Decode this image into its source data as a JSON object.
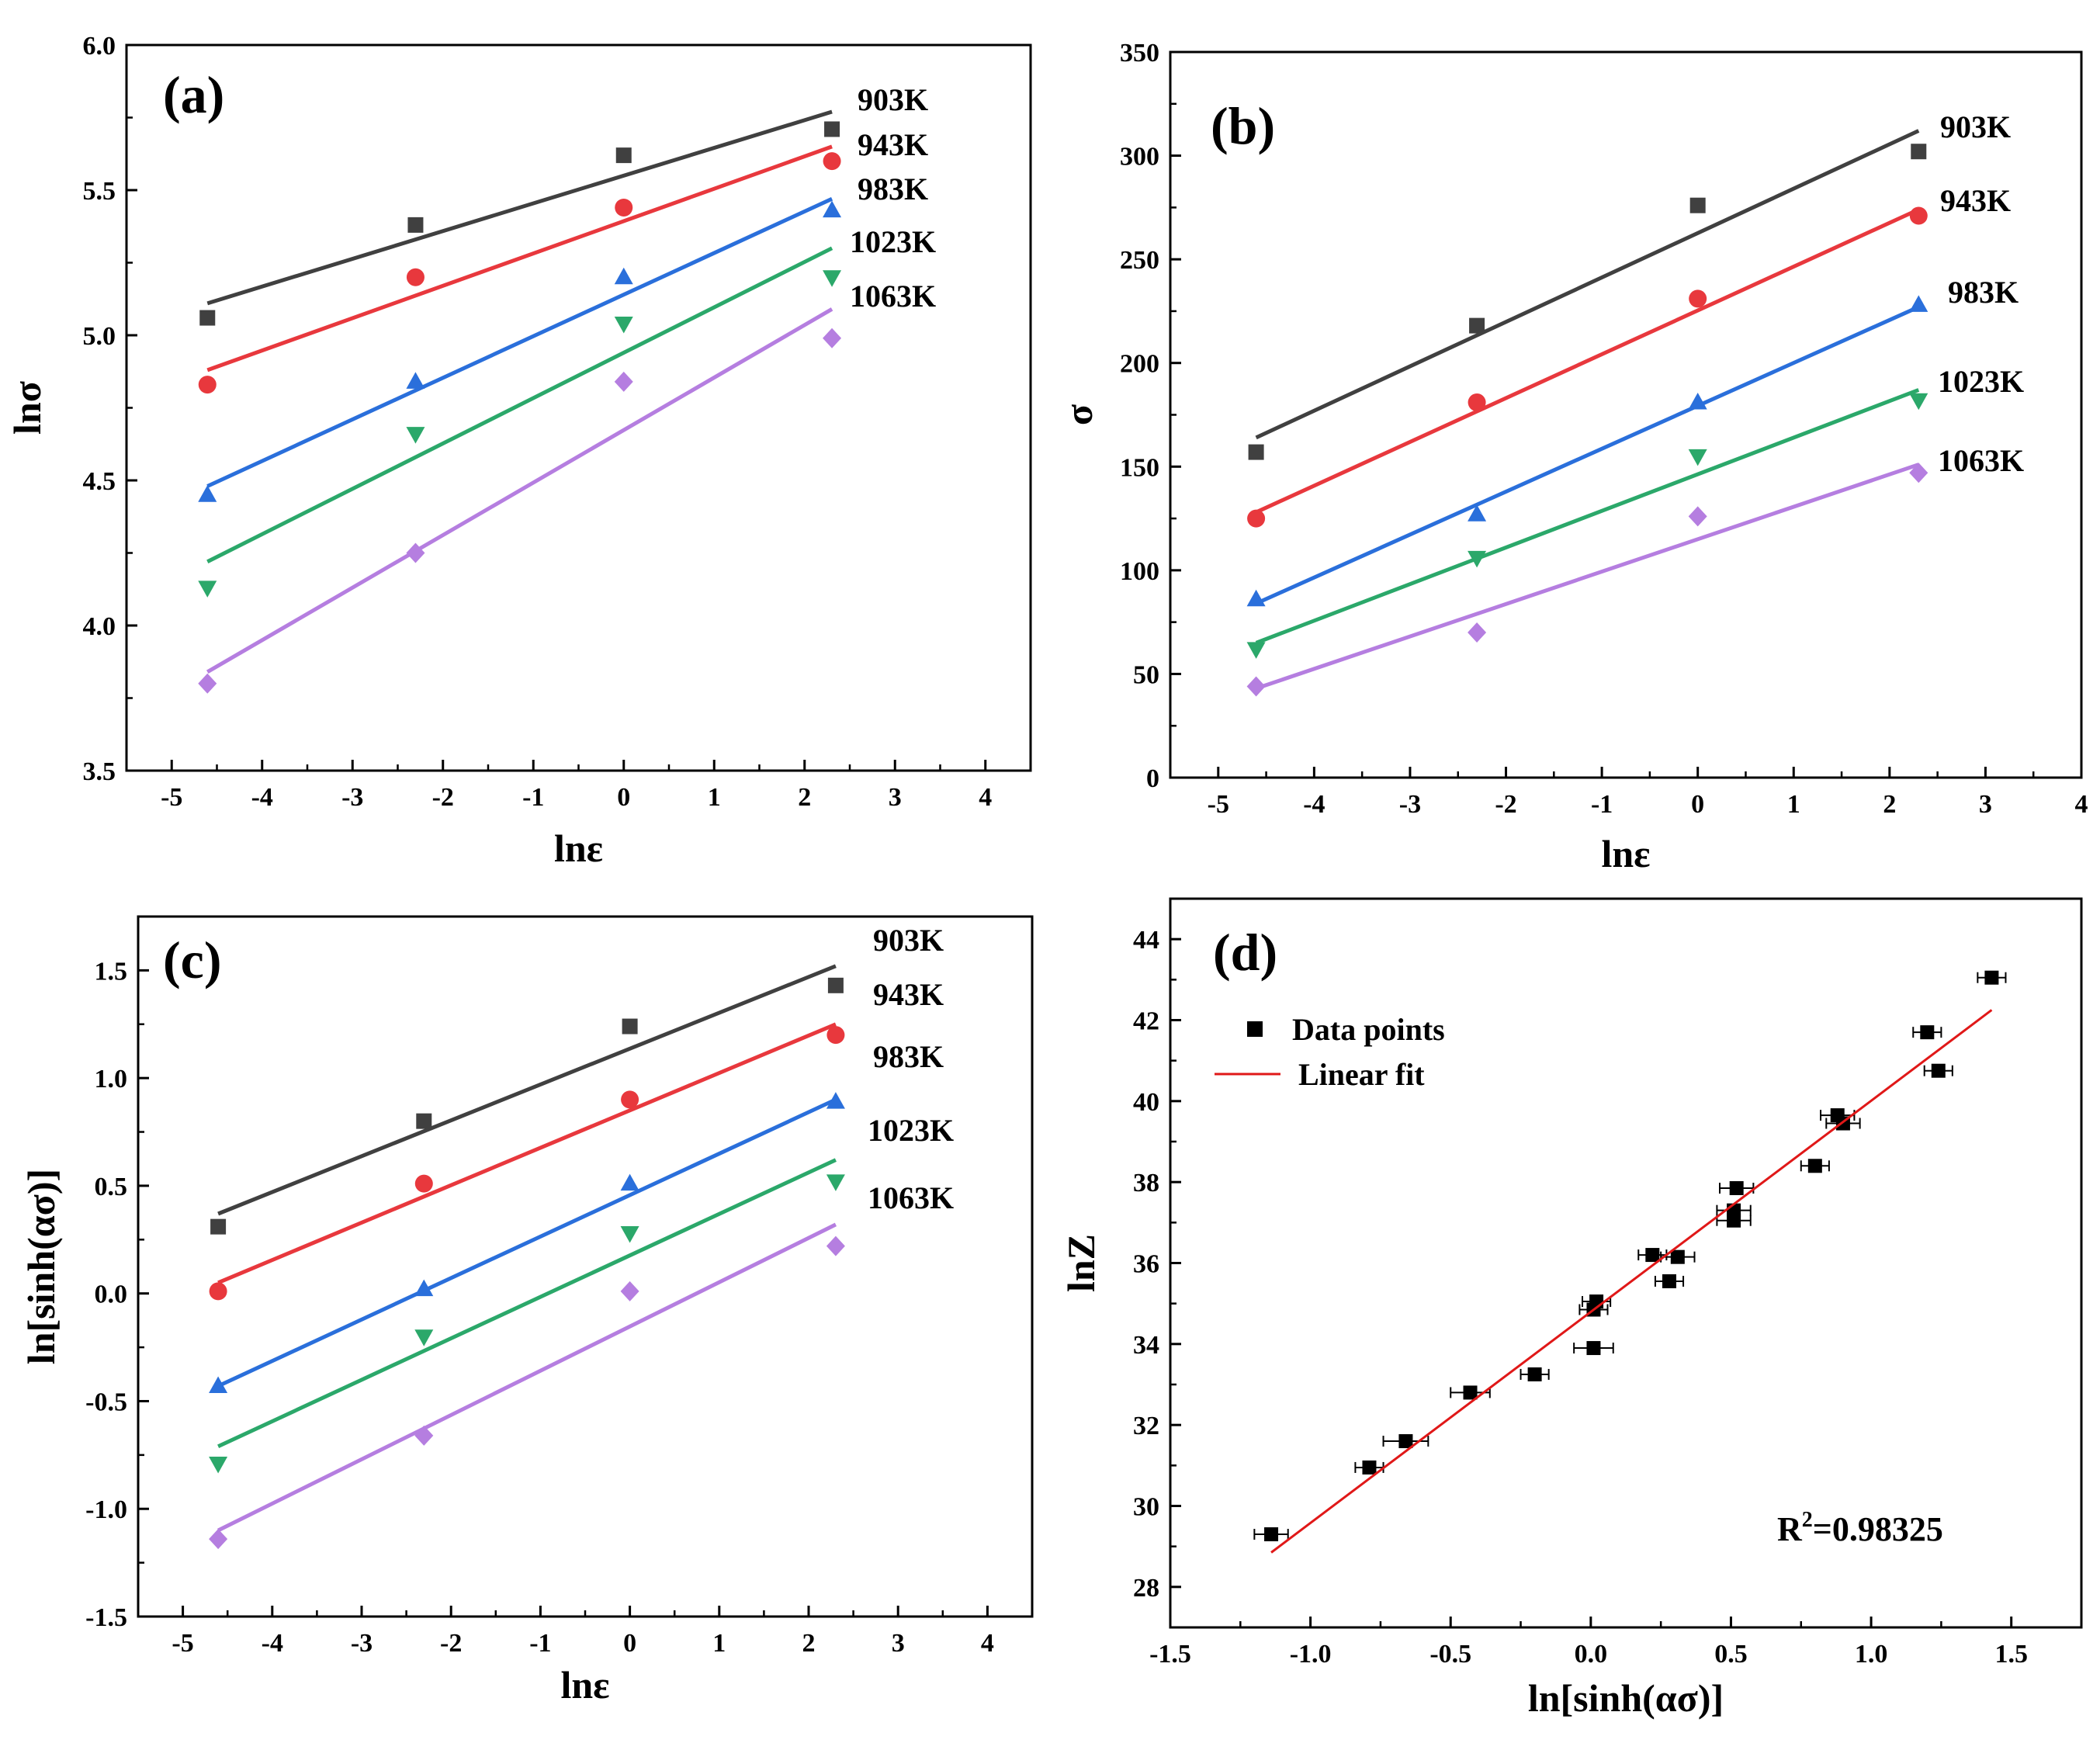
{
  "colors": {
    "903K": "#404040",
    "943K": "#e8383d",
    "983K": "#2a6fdb",
    "1023K": "#2ba86a",
    "1063K": "#b57ee0",
    "fit": "#e01818",
    "points": "#000000"
  },
  "chart_data": [
    {
      "type": "scatter",
      "panel": "(a)",
      "xlabel": "lnε",
      "ylabel": "lnσ",
      "xlim": [
        -5.5,
        4.5
      ],
      "ylim": [
        3.5,
        6.0
      ],
      "xticks": [
        "-5",
        "-4",
        "-3",
        "-2",
        "-1",
        "0",
        "1",
        "2",
        "3",
        "4"
      ],
      "yticks": [
        "3.5",
        "4.0",
        "4.5",
        "5.0",
        "5.5",
        "6.0"
      ],
      "x": [
        -4.605,
        -2.303,
        0.0,
        2.303
      ],
      "series": [
        {
          "name": "903K",
          "marker": "square",
          "values": [
            5.06,
            5.38,
            5.62,
            5.71
          ],
          "fit": [
            5.11,
            5.77
          ]
        },
        {
          "name": "943K",
          "marker": "circle",
          "values": [
            4.83,
            5.2,
            5.44,
            5.6
          ],
          "fit": [
            4.88,
            5.65
          ]
        },
        {
          "name": "983K",
          "marker": "triangle-up",
          "values": [
            4.45,
            4.84,
            5.2,
            5.43
          ],
          "fit": [
            4.48,
            5.47
          ]
        },
        {
          "name": "1023K",
          "marker": "triangle-down",
          "values": [
            4.13,
            4.66,
            5.04,
            5.2
          ],
          "fit": [
            4.22,
            5.3
          ]
        },
        {
          "name": "1063K",
          "marker": "diamond",
          "values": [
            3.8,
            4.25,
            4.84,
            4.99
          ],
          "fit": [
            3.84,
            5.09
          ]
        }
      ]
    },
    {
      "type": "scatter",
      "panel": "(b)",
      "xlabel": "lnε",
      "ylabel": "σ",
      "xlim": [
        -5.5,
        4.0
      ],
      "ylim": [
        0,
        350
      ],
      "xticks": [
        "-5",
        "-4",
        "-3",
        "-2",
        "-1",
        "0",
        "1",
        "2",
        "3",
        "4"
      ],
      "yticks": [
        "0",
        "50",
        "100",
        "150",
        "200",
        "250",
        "300",
        "350"
      ],
      "x": [
        -4.605,
        -2.303,
        0.0,
        2.303
      ],
      "series": [
        {
          "name": "903K",
          "marker": "square",
          "values": [
            157,
            218,
            276,
            302
          ],
          "fit": [
            164,
            312
          ]
        },
        {
          "name": "943K",
          "marker": "circle",
          "values": [
            125,
            181,
            231,
            271
          ],
          "fit": [
            128,
            274
          ]
        },
        {
          "name": "983K",
          "marker": "triangle-up",
          "values": [
            86,
            127,
            181,
            228
          ],
          "fit": [
            84,
            227
          ]
        },
        {
          "name": "1023K",
          "marker": "triangle-down",
          "values": [
            62,
            106,
            155,
            182
          ],
          "fit": [
            65,
            187
          ]
        },
        {
          "name": "1063K",
          "marker": "diamond",
          "values": [
            44,
            70,
            126,
            147
          ],
          "fit": [
            43,
            151
          ]
        }
      ]
    },
    {
      "type": "scatter",
      "panel": "(c)",
      "xlabel": "lnε",
      "ylabel": "ln[sinh(ασ)]",
      "xlim": [
        -5.5,
        4.5
      ],
      "ylim": [
        -1.5,
        1.75
      ],
      "xticks": [
        "-5",
        "-4",
        "-3",
        "-2",
        "-1",
        "0",
        "1",
        "2",
        "3",
        "4"
      ],
      "yticks": [
        "-1.5",
        "-1.0",
        "-0.5",
        "0.0",
        "0.5",
        "1.0",
        "1.5"
      ],
      "x": [
        -4.605,
        -2.303,
        0.0,
        2.303
      ],
      "series": [
        {
          "name": "903K",
          "marker": "square",
          "values": [
            0.31,
            0.8,
            1.24,
            1.43
          ],
          "fit": [
            0.37,
            1.52
          ]
        },
        {
          "name": "943K",
          "marker": "circle",
          "values": [
            0.01,
            0.51,
            0.9,
            1.2
          ],
          "fit": [
            0.05,
            1.25
          ]
        },
        {
          "name": "983K",
          "marker": "triangle-up",
          "values": [
            -0.43,
            0.02,
            0.51,
            0.89
          ],
          "fit": [
            -0.43,
            0.9
          ]
        },
        {
          "name": "1023K",
          "marker": "triangle-down",
          "values": [
            -0.79,
            -0.2,
            0.28,
            0.52
          ],
          "fit": [
            -0.71,
            0.62
          ]
        },
        {
          "name": "1063K",
          "marker": "diamond",
          "values": [
            -1.14,
            -0.66,
            0.01,
            0.22
          ],
          "fit": [
            -1.1,
            0.32
          ]
        }
      ]
    },
    {
      "type": "scatter",
      "panel": "(d)",
      "xlabel": "ln[sinh(ασ)]",
      "ylabel": "lnZ",
      "xlim": [
        -1.5,
        1.75
      ],
      "ylim": [
        27,
        45
      ],
      "xticks": [
        "-1.5",
        "-1.0",
        "-0.5",
        "0.0",
        "0.5",
        "1.0",
        "1.5"
      ],
      "yticks": [
        "28",
        "30",
        "32",
        "34",
        "36",
        "38",
        "40",
        "42",
        "44"
      ],
      "legend": {
        "points": "Data points",
        "fit": "Linear fit",
        "position": "top-left"
      },
      "r2": {
        "prefix": "R",
        "sup": "2",
        "value": "=0.98325"
      },
      "points": [
        {
          "x": -1.14,
          "y": 29.3,
          "err": 0.06
        },
        {
          "x": -0.79,
          "y": 30.95,
          "err": 0.05
        },
        {
          "x": -0.66,
          "y": 31.6,
          "err": 0.08
        },
        {
          "x": -0.43,
          "y": 32.8,
          "err": 0.07
        },
        {
          "x": -0.2,
          "y": 33.25,
          "err": 0.05
        },
        {
          "x": 0.01,
          "y": 33.9,
          "err": 0.07
        },
        {
          "x": 0.01,
          "y": 34.85,
          "err": 0.05
        },
        {
          "x": 0.02,
          "y": 35.05,
          "err": 0.05
        },
        {
          "x": 0.22,
          "y": 36.2,
          "err": 0.05
        },
        {
          "x": 0.28,
          "y": 35.55,
          "err": 0.05
        },
        {
          "x": 0.31,
          "y": 36.15,
          "err": 0.06
        },
        {
          "x": 0.51,
          "y": 37.3,
          "err": 0.06
        },
        {
          "x": 0.51,
          "y": 37.05,
          "err": 0.06
        },
        {
          "x": 0.52,
          "y": 37.85,
          "err": 0.06
        },
        {
          "x": 0.8,
          "y": 38.4,
          "err": 0.05
        },
        {
          "x": 0.88,
          "y": 39.65,
          "err": 0.06
        },
        {
          "x": 0.9,
          "y": 39.45,
          "err": 0.06
        },
        {
          "x": 1.2,
          "y": 41.7,
          "err": 0.05
        },
        {
          "x": 1.24,
          "y": 40.75,
          "err": 0.05
        },
        {
          "x": 1.43,
          "y": 43.05,
          "err": 0.05
        }
      ],
      "fit": {
        "x": [
          -1.14,
          1.43
        ],
        "y": [
          28.85,
          42.25
        ]
      }
    }
  ]
}
